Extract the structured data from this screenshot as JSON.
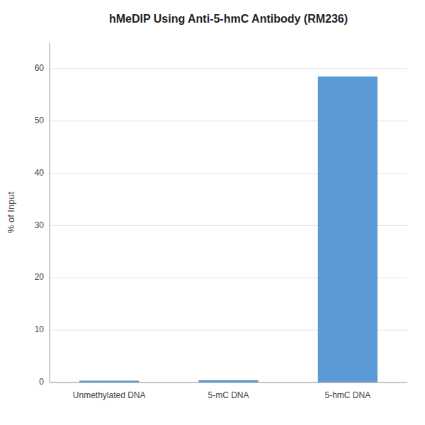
{
  "chart_data": {
    "type": "bar",
    "title": "hMeDIP Using Anti-5-hmC Antibody (RM236)",
    "categories": [
      "Unmethylated DNA",
      "5-mC DNA",
      "5-hmC DNA"
    ],
    "values": [
      0.35,
      0.45,
      58.5
    ],
    "color": "#5b9bd5",
    "ylabel": "% of Input",
    "ylim": [
      0,
      65
    ],
    "yticks": [
      0,
      10,
      20,
      30,
      40,
      50,
      60
    ],
    "grid": true
  }
}
